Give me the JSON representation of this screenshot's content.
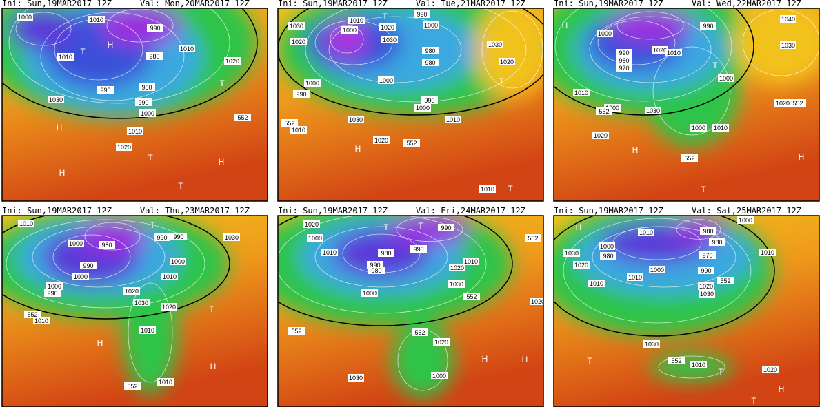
{
  "panels": [
    {
      "init": "Ini: Sun,19MAR2017 12Z",
      "valid": "Val: Mon,20MAR2017 12Z",
      "labels": [
        "1000",
        "1010",
        "990",
        "980",
        "1010",
        "1010",
        "990",
        "980",
        "990",
        "1000",
        "1030",
        "1010",
        "1020",
        "552",
        "1020"
      ],
      "symbols": [
        "H",
        "H",
        "H",
        "T",
        "T",
        "H",
        "T",
        "T"
      ]
    },
    {
      "init": "Ini: Sun,19MAR2017 12Z",
      "valid": "Val: Tue,21MAR2017 12Z",
      "labels": [
        "1030",
        "1010",
        "1000",
        "1020",
        "990",
        "1000",
        "1030",
        "980",
        "980",
        "1000",
        "1020",
        "1000",
        "990",
        "990",
        "1000",
        "1030",
        "1010",
        "1020",
        "552",
        "1030",
        "1020",
        "1010",
        "552",
        "1010"
      ],
      "symbols": [
        "H",
        "T",
        "T",
        "T"
      ]
    },
    {
      "init": "Ini: Sun,19MAR2017 12Z",
      "valid": "Val: Wed,22MAR2017 12Z",
      "labels": [
        "1000",
        "990",
        "990",
        "980",
        "970",
        "1020",
        "1010",
        "1010",
        "1000",
        "1030",
        "1020",
        "1000",
        "1010",
        "1000",
        "552",
        "1040",
        "1030",
        "1020",
        "552",
        "552"
      ],
      "symbols": [
        "H",
        "H",
        "H",
        "T",
        "T"
      ]
    },
    {
      "init": "Ini: Sun,19MAR2017 12Z",
      "valid": "Val: Thu,23MAR2017 12Z",
      "labels": [
        "1010",
        "1000",
        "980",
        "990",
        "1000",
        "1000",
        "990",
        "990",
        "990",
        "1000",
        "1010",
        "1020",
        "1030",
        "1020",
        "1010",
        "552",
        "1010",
        "1030",
        "552",
        "1010"
      ],
      "symbols": [
        "T",
        "H",
        "H",
        "T"
      ]
    },
    {
      "init": "Ini: Sun,19MAR2017 12Z",
      "valid": "Val: Fri,24MAR2017 12Z",
      "labels": [
        "1020",
        "1000",
        "1010",
        "980",
        "990",
        "980",
        "990",
        "990",
        "1010",
        "1020",
        "1030",
        "552",
        "1000",
        "552",
        "552",
        "1020",
        "1030",
        "1000",
        "552",
        "1020"
      ],
      "symbols": [
        "T",
        "H",
        "H",
        "T"
      ]
    },
    {
      "init": "Ini: Sun,19MAR2017 12Z",
      "valid": "Val: Sat,25MAR2017 12Z",
      "labels": [
        "1010",
        "1000",
        "980",
        "980",
        "970",
        "1000",
        "980",
        "990",
        "1030",
        "1020",
        "1010",
        "1010",
        "1000",
        "552",
        "1020",
        "1030",
        "1010",
        "1030",
        "552",
        "1010",
        "1020"
      ],
      "symbols": [
        "H",
        "H",
        "T",
        "T",
        "T"
      ]
    }
  ]
}
